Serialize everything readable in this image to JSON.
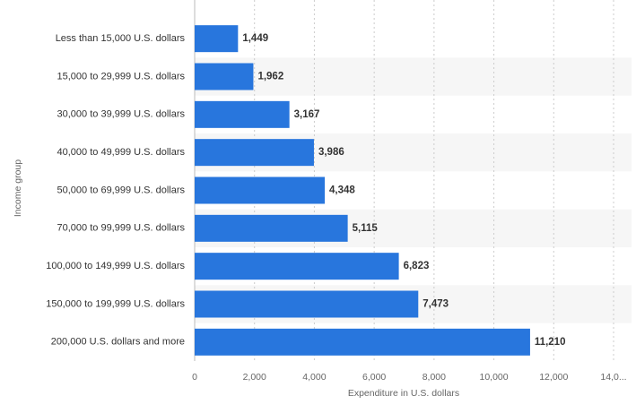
{
  "chart_data": {
    "type": "bar",
    "orientation": "horizontal",
    "x_label": "Expenditure in U.S. dollars",
    "y_label": "Income group",
    "categories": [
      "Less than 15,000 U.S. dollars",
      "15,000 to 29,999 U.S. dollars",
      "30,000 to 39,999 U.S. dollars",
      "40,000 to 49,999 U.S. dollars",
      "50,000 to 69,999 U.S. dollars",
      "70,000 to 99,999 U.S. dollars",
      "100,000 to 149,999 U.S. dollars",
      "150,000 to 199,999 U.S. dollars",
      "200,000 U.S. dollars and more"
    ],
    "values": [
      1449,
      1962,
      3167,
      3986,
      4348,
      5115,
      6823,
      7473,
      11210
    ],
    "value_labels": [
      "1,449",
      "1,962",
      "3,167",
      "3,986",
      "4,348",
      "5,115",
      "6,823",
      "7,473",
      "11,210"
    ],
    "color": "#2876dd",
    "xlim": [
      0,
      14000
    ],
    "xticks": [
      0,
      {
        "value": 2000,
        "label": "2,000"
      },
      {
        "value": 4000,
        "label": "4,000"
      },
      {
        "value": 6000,
        "label": "6,000"
      },
      {
        "value": 8000,
        "label": "8,000"
      },
      {
        "value": 10000,
        "label": "10,000"
      },
      {
        "value": 12000,
        "label": "12,000"
      },
      {
        "value": 14000,
        "label": "14,0..."
      }
    ],
    "grid": true
  }
}
